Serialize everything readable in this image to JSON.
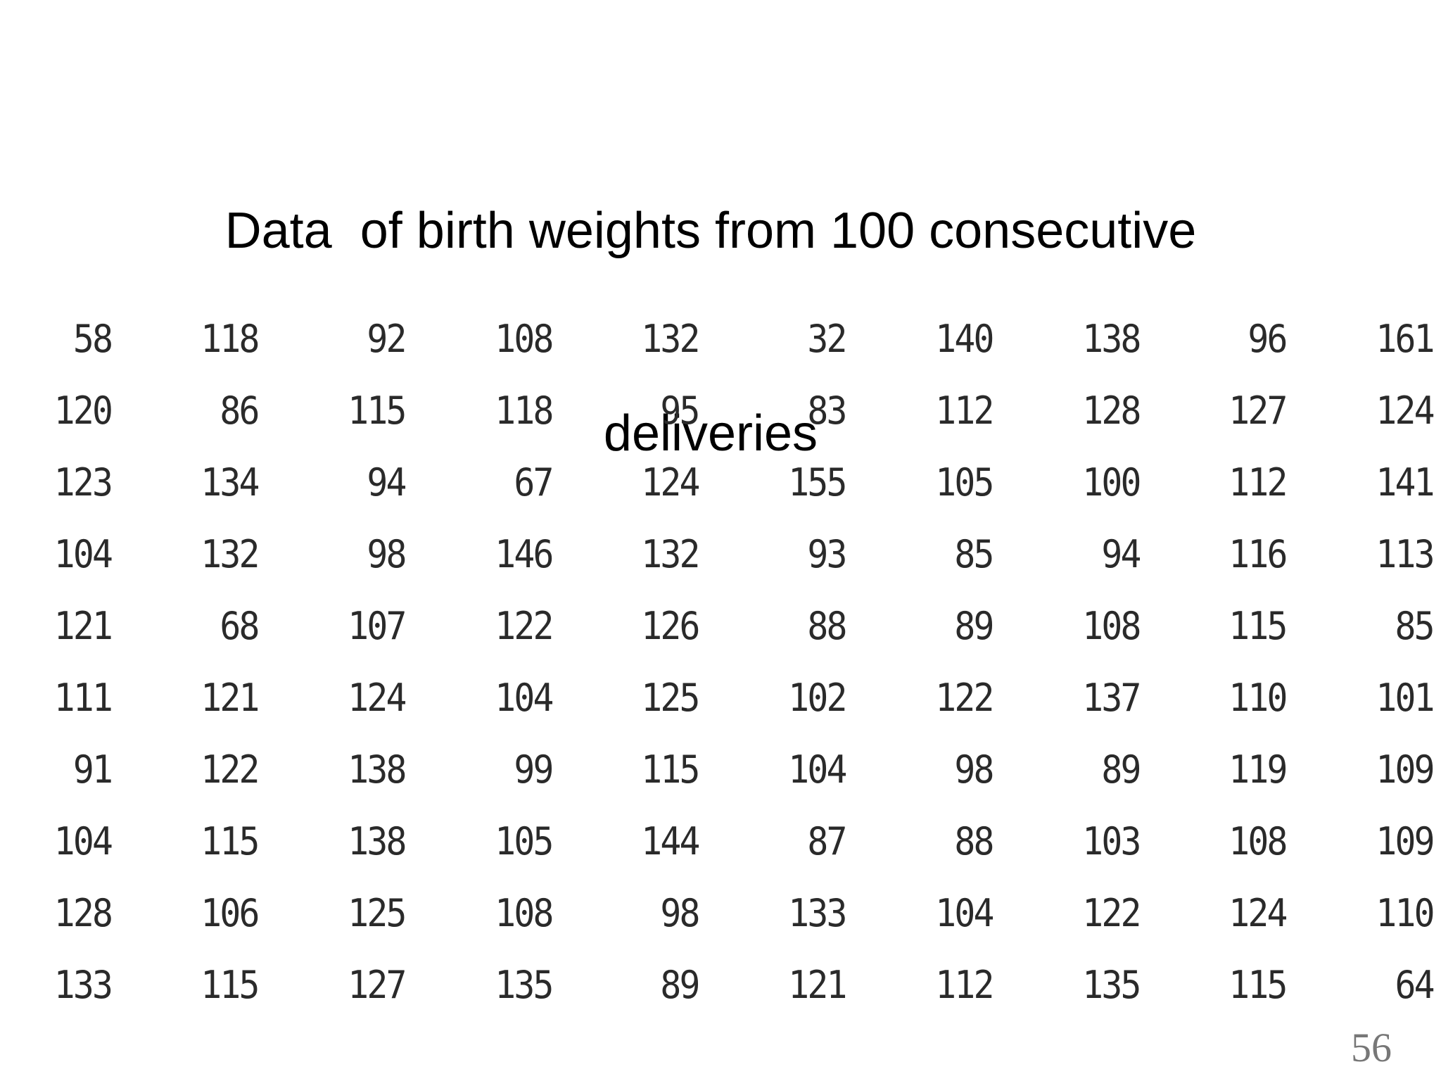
{
  "title": {
    "line1": "Data  of birth weights from 100 consecutive",
    "line2": "deliveries"
  },
  "table": {
    "rows": [
      [
        "58",
        "118",
        "92",
        "108",
        "132",
        "32",
        "140",
        "138",
        "96",
        "161"
      ],
      [
        "120",
        "86",
        "115",
        "118",
        "95",
        "83",
        "112",
        "128",
        "127",
        "124"
      ],
      [
        "123",
        "134",
        "94",
        "67",
        "124",
        "155",
        "105",
        "100",
        "112",
        "141"
      ],
      [
        "104",
        "132",
        "98",
        "146",
        "132",
        "93",
        "85",
        "94",
        "116",
        "113"
      ],
      [
        "121",
        "68",
        "107",
        "122",
        "126",
        "88",
        "89",
        "108",
        "115",
        "85"
      ],
      [
        "111",
        "121",
        "124",
        "104",
        "125",
        "102",
        "122",
        "137",
        "110",
        "101"
      ],
      [
        "91",
        "122",
        "138",
        "99",
        "115",
        "104",
        "98",
        "89",
        "119",
        "109"
      ],
      [
        "104",
        "115",
        "138",
        "105",
        "144",
        "87",
        "88",
        "103",
        "108",
        "109"
      ],
      [
        "128",
        "106",
        "125",
        "108",
        "98",
        "133",
        "104",
        "122",
        "124",
        "110"
      ],
      [
        "133",
        "115",
        "127",
        "135",
        "89",
        "121",
        "112",
        "135",
        "115",
        "64"
      ]
    ]
  },
  "page_number": "56"
}
